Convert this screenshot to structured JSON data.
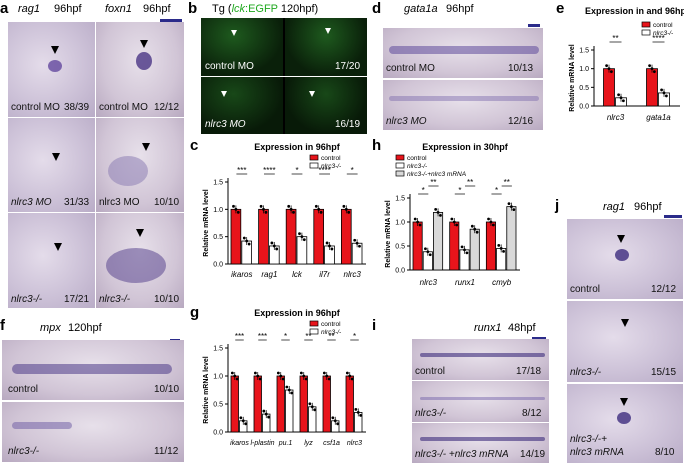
{
  "panel_letters": [
    "a",
    "b",
    "c",
    "d",
    "e",
    "f",
    "g",
    "h",
    "i",
    "j"
  ],
  "a": {
    "col1_gene": "rag1",
    "col1_stage": "96hpf",
    "col2_gene": "foxn1",
    "col2_stage": "96hpf",
    "rows": [
      {
        "left_label": "control MO",
        "left_count": "38/39",
        "right_label": "control MO",
        "right_count": "12/12"
      },
      {
        "left_label": "nlrc3 MO",
        "left_count": "31/33",
        "right_label": "nlrc3 MO",
        "right_count": "10/10"
      },
      {
        "left_label": "nlrc3-/-",
        "left_count": "17/21",
        "right_label": "nlrc3-/-",
        "right_count": "10/10"
      }
    ]
  },
  "b": {
    "title_prefix": "Tg (",
    "title_gene": "lck",
    "title_reporter": ":EGFP",
    "title_suffix": " 120hpf)",
    "rows": [
      {
        "label": "control MO",
        "count": "17/20"
      },
      {
        "label": "nlrc3 MO",
        "count": "16/19"
      }
    ]
  },
  "d": {
    "gene": "gata1a",
    "stage": "96hpf",
    "rows": [
      {
        "label": "control MO",
        "count": "10/13"
      },
      {
        "label": "nlrc3 MO",
        "count": "12/16"
      }
    ]
  },
  "f": {
    "gene": "mpx",
    "stage": "120hpf",
    "rows": [
      {
        "label": "control",
        "count": "10/10"
      },
      {
        "label": "nlrc3-/-",
        "count": "11/12"
      }
    ]
  },
  "i": {
    "gene": "runx1",
    "stage": "48hpf",
    "rows": [
      {
        "label": "control",
        "count": "17/18"
      },
      {
        "label": "nlrc3-/-",
        "count": "8/12"
      },
      {
        "label": "nlrc3-/- +nlrc3 mRNA",
        "count": "14/19"
      }
    ]
  },
  "j": {
    "gene": "rag1",
    "stage": "96hpf",
    "rows": [
      {
        "label": "control",
        "count": "12/12"
      },
      {
        "label": "nlrc3-/-",
        "count": "15/15"
      },
      {
        "label_line1": "nlrc3-/-+",
        "label_line2": "nlrc3 mRNA",
        "count": "8/10"
      }
    ]
  },
  "colors": {
    "control": "#e8141b",
    "mutant": "#ffffff",
    "rescue": "#d9d9d9",
    "stain": "#3a2a7a"
  },
  "chart_data": [
    {
      "id": "c",
      "type": "bar",
      "title": "Expression in 96hpf",
      "ylabel": "Relative mRNA level",
      "ylim": [
        0,
        1.5
      ],
      "yticks": [
        "0.0",
        "0.5",
        "1.0",
        "1.5"
      ],
      "categories": [
        "ikaros",
        "rag1",
        "lck",
        "il7r",
        "nlrc3"
      ],
      "significance": [
        "***",
        "****",
        "*",
        "****",
        "*"
      ],
      "legend": [
        "control",
        "nlrc3-/-"
      ],
      "series": [
        {
          "name": "control",
          "values": [
            1.0,
            1.0,
            1.0,
            1.0,
            1.0
          ]
        },
        {
          "name": "nlrc3-/-",
          "values": [
            0.42,
            0.33,
            0.5,
            0.33,
            0.38
          ]
        }
      ]
    },
    {
      "id": "e",
      "type": "bar",
      "title": "Expression in and 96hpf",
      "ylabel": "Relative mRNA level",
      "ylim": [
        0,
        1.5
      ],
      "yticks": [
        "0.0",
        "0.5",
        "1.0",
        "1.5"
      ],
      "categories": [
        "nlrc3",
        "gata1a"
      ],
      "significance": [
        "**",
        "****"
      ],
      "legend": [
        "control",
        "nlrc3-/-"
      ],
      "series": [
        {
          "name": "control",
          "values": [
            1.0,
            1.0
          ]
        },
        {
          "name": "nlrc3-/-",
          "values": [
            0.22,
            0.35
          ]
        }
      ]
    },
    {
      "id": "g",
      "type": "bar",
      "title": "Expression in 96hpf",
      "ylabel": "Relative mRNA level",
      "ylim": [
        0,
        1.5
      ],
      "yticks": [
        "0.0",
        "0.5",
        "1.0",
        "1.5"
      ],
      "categories": [
        "ikaros",
        "l-plastin",
        "pu.1",
        "lyz",
        "csf1a",
        "nlrc3"
      ],
      "significance": [
        "***",
        "***",
        "*",
        "**",
        "**",
        "*"
      ],
      "legend": [
        "control",
        "nlrc3-/-"
      ],
      "series": [
        {
          "name": "control",
          "values": [
            1.0,
            1.0,
            1.0,
            1.0,
            1.0,
            1.0
          ]
        },
        {
          "name": "nlrc3-/-",
          "values": [
            0.2,
            0.32,
            0.75,
            0.45,
            0.2,
            0.35
          ]
        }
      ]
    },
    {
      "id": "h",
      "type": "bar",
      "title": "Expression in 30hpf",
      "ylabel": "Relative mRNA level",
      "ylim": [
        0,
        1.5
      ],
      "yticks": [
        "0.0",
        "0.5",
        "1.0",
        "1.5"
      ],
      "categories": [
        "nlrc3",
        "runx1",
        "cmyb"
      ],
      "significance": [
        [
          "*",
          "**"
        ],
        [
          "*",
          "**"
        ],
        [
          "*",
          "**"
        ]
      ],
      "legend": [
        "control",
        "nlrc3-/-",
        "nlrc3-/-+nlrc3 mRNA"
      ],
      "series": [
        {
          "name": "control",
          "values": [
            1.0,
            1.0,
            1.0
          ]
        },
        {
          "name": "nlrc3-/-",
          "values": [
            0.38,
            0.42,
            0.45
          ]
        },
        {
          "name": "nlrc3-/-+nlrc3 mRNA",
          "values": [
            1.2,
            0.85,
            1.32
          ]
        }
      ]
    }
  ]
}
